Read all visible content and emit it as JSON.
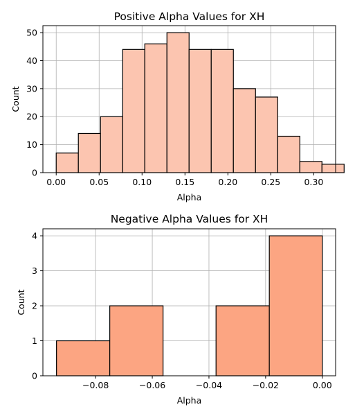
{
  "chart_data": [
    {
      "type": "bar",
      "title": "Positive Alpha Values for XH",
      "xlabel": "Alpha",
      "ylabel": "Count",
      "xlim": [
        -0.0155,
        0.3255
      ],
      "ylim": [
        0,
        52.5
      ],
      "xticks": [
        0.0,
        0.05,
        0.1,
        0.15,
        0.2,
        0.25,
        0.3
      ],
      "xtick_labels": [
        "0.00",
        "0.05",
        "0.10",
        "0.15",
        "0.20",
        "0.25",
        "0.30"
      ],
      "yticks": [
        0,
        10,
        20,
        30,
        40,
        50
      ],
      "ytick_labels": [
        "0",
        "10",
        "20",
        "30",
        "40",
        "50"
      ],
      "grid": true,
      "bar_color": "#fcc5b0",
      "edge_color": "#000000",
      "bin_edges": [
        0.0,
        0.0258,
        0.0516,
        0.0774,
        0.1032,
        0.129,
        0.1548,
        0.1806,
        0.2064,
        0.2322,
        0.258,
        0.2838,
        0.3096,
        0.3354
      ],
      "values": [
        7,
        14,
        20,
        44,
        46,
        50,
        44,
        44,
        30,
        27,
        13,
        4,
        3
      ]
    },
    {
      "type": "bar",
      "title": "Negative Alpha Values for XH",
      "xlabel": "Alpha",
      "ylabel": "Count",
      "xlim": [
        -0.0986,
        0.0047
      ],
      "ylim": [
        0,
        4.2
      ],
      "xticks": [
        -0.08,
        -0.06,
        -0.04,
        -0.02,
        0.0
      ],
      "xtick_labels": [
        "−0.08",
        "−0.06",
        "−0.04",
        "−0.02",
        "0.00"
      ],
      "yticks": [
        0,
        1,
        2,
        3,
        4
      ],
      "ytick_labels": [
        "0",
        "1",
        "2",
        "3",
        "4"
      ],
      "grid": true,
      "bar_color": "#fca582",
      "edge_color": "#000000",
      "bin_edges": [
        -0.0938,
        -0.075,
        -0.0562,
        -0.0375,
        -0.0187,
        0.0
      ],
      "values": [
        1,
        2,
        0,
        2,
        4
      ]
    }
  ]
}
